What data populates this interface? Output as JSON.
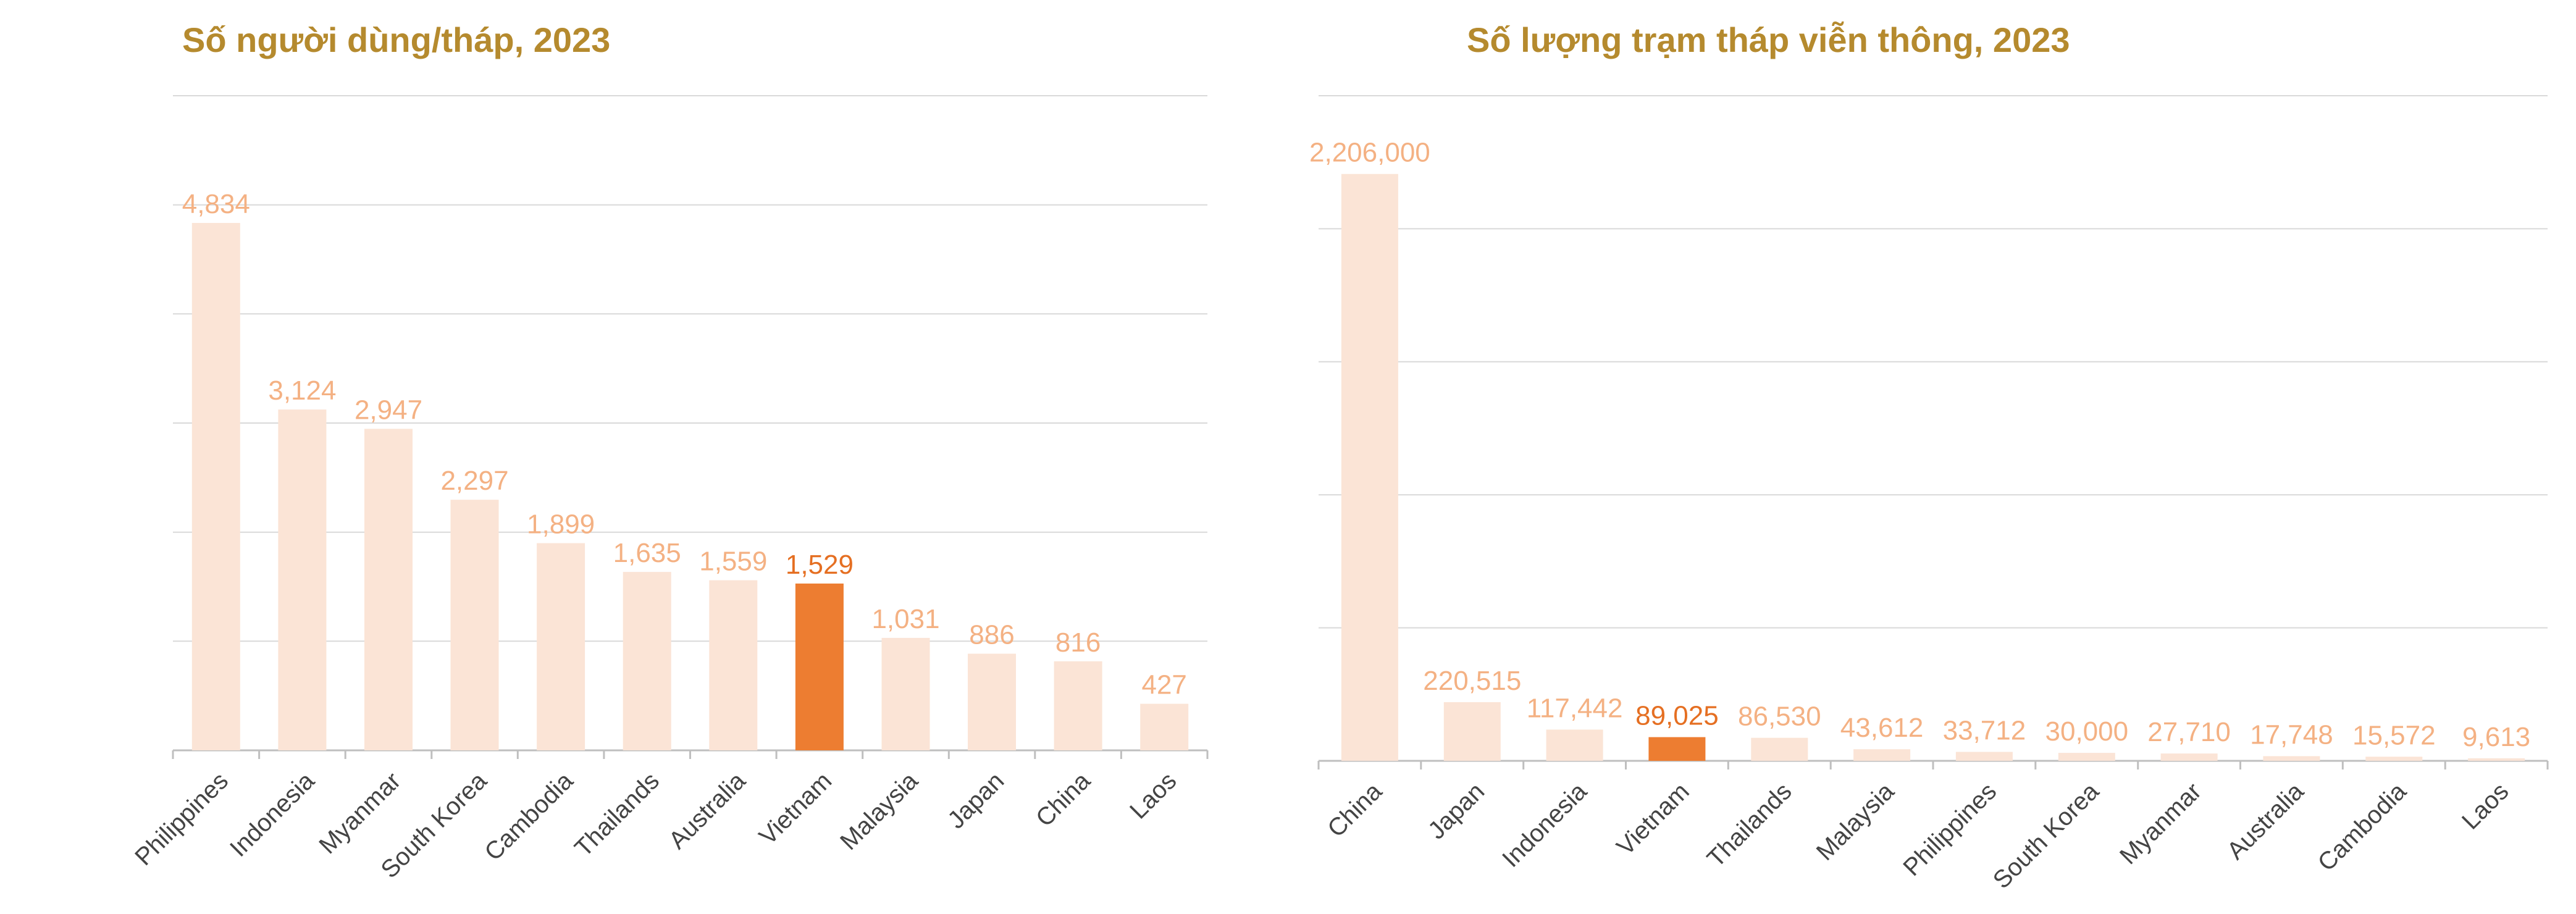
{
  "colors": {
    "title": "#B58A2E",
    "bar_default": "#FBE4D6",
    "bar_highlight": "#ED7D31",
    "label_default": "#F4B183",
    "label_highlight": "#E56F22",
    "grid": "#D9D9D9",
    "axis": "#BFBFBF",
    "tick_text": "#444444"
  },
  "chart_data": [
    {
      "type": "bar",
      "title": "Số người dùng/tháp, 2023",
      "categories": [
        "Philippines",
        "Indonesia",
        "Myanmar",
        "South Korea",
        "Cambodia",
        "Thailands",
        "Australia",
        "Vietnam",
        "Malaysia",
        "Japan",
        "China",
        "Laos"
      ],
      "values": [
        4834,
        3124,
        2947,
        2297,
        1899,
        1635,
        1559,
        1529,
        1031,
        886,
        816,
        427
      ],
      "value_labels": [
        "4,834",
        "3,124",
        "2,947",
        "2,297",
        "1,899",
        "1,635",
        "1,559",
        "1,529",
        "1,031",
        "886",
        "816",
        "427"
      ],
      "highlight": "Vietnam",
      "ylim": [
        0,
        6000
      ],
      "grid": true,
      "xlabel": "",
      "ylabel": ""
    },
    {
      "type": "bar",
      "title": "Số lượng trạm tháp viễn thông, 2023",
      "categories": [
        "China",
        "Japan",
        "Indonesia",
        "Vietnam",
        "Thailands",
        "Malaysia",
        "Philippines",
        "South Korea",
        "Myanmar",
        "Australia",
        "Cambodia",
        "Laos"
      ],
      "values": [
        2206000,
        220515,
        117442,
        89025,
        86530,
        43612,
        33712,
        30000,
        27710,
        17748,
        15572,
        9613
      ],
      "value_labels": [
        "2,206,000",
        "220,515",
        "117,442",
        "89,025",
        "86,530",
        "43,612",
        "33,712",
        "30,000",
        "27,710",
        "17,748",
        "15,572",
        "9,613"
      ],
      "highlight": "Vietnam",
      "ylim": [
        0,
        2500000
      ],
      "grid": true,
      "xlabel": "",
      "ylabel": ""
    }
  ]
}
